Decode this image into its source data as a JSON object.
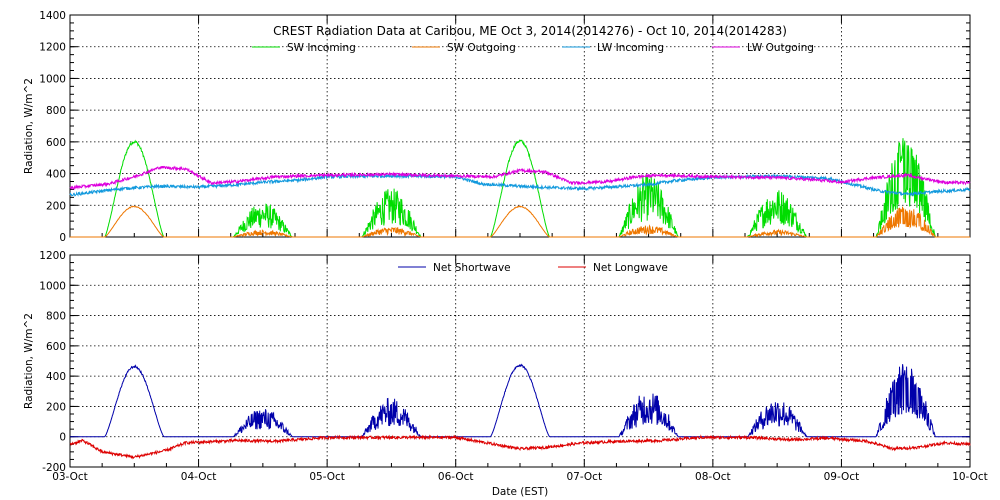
{
  "chart_data": [
    {
      "type": "line",
      "title": "CREST Radiation Data at Caribou, ME   Oct  3, 2014(2014276) - Oct 10, 2014(2014283)",
      "ylabel": "Radiation, W/m^2",
      "xlabel": "",
      "ylim": [
        0,
        1400
      ],
      "yticks": [
        "0",
        "200",
        "400",
        "600",
        "800",
        "1000",
        "1200",
        "1400"
      ],
      "xlim": [
        0,
        7
      ],
      "x_unit": "days after 03-Oct 00:00 EST",
      "grid": true,
      "legend": "top, two rows",
      "series": [
        {
          "name": "SW Incoming",
          "color": "#00dd00",
          "daily_peaks": [
            610,
            220,
            310,
            615,
            400,
            310,
            640
          ],
          "profile": [
            "smooth",
            "cloudy",
            "cloudy",
            "smooth",
            "cloudy",
            "cloudy",
            "spiky"
          ]
        },
        {
          "name": "SW Outgoing",
          "color": "#ee7700",
          "daily_peaks": [
            195,
            45,
            65,
            195,
            75,
            45,
            200
          ],
          "profile": [
            "smooth",
            "cloudy",
            "cloudy",
            "smooth",
            "cloudy",
            "cloudy",
            "spiky"
          ]
        },
        {
          "name": "LW Incoming",
          "color": "#1199dd",
          "points": [
            [
              0,
              265
            ],
            [
              0.4,
              305
            ],
            [
              0.7,
              320
            ],
            [
              1.0,
              315
            ],
            [
              1.3,
              330
            ],
            [
              1.5,
              345
            ],
            [
              1.8,
              360
            ],
            [
              2.0,
              380
            ],
            [
              2.5,
              385
            ],
            [
              3.0,
              380
            ],
            [
              3.2,
              335
            ],
            [
              3.5,
              320
            ],
            [
              3.8,
              310
            ],
            [
              4.0,
              305
            ],
            [
              4.3,
              320
            ],
            [
              4.5,
              330
            ],
            [
              4.7,
              355
            ],
            [
              5.0,
              375
            ],
            [
              5.5,
              385
            ],
            [
              5.9,
              370
            ],
            [
              6.1,
              330
            ],
            [
              6.3,
              290
            ],
            [
              6.5,
              270
            ],
            [
              6.8,
              290
            ],
            [
              7.0,
              300
            ]
          ]
        },
        {
          "name": "LW Outgoing",
          "color": "#dd00dd",
          "points": [
            [
              0,
              310
            ],
            [
              0.3,
              335
            ],
            [
              0.5,
              380
            ],
            [
              0.7,
              440
            ],
            [
              0.9,
              430
            ],
            [
              1.1,
              340
            ],
            [
              1.3,
              350
            ],
            [
              1.6,
              380
            ],
            [
              2.0,
              390
            ],
            [
              2.5,
              395
            ],
            [
              3.0,
              385
            ],
            [
              3.3,
              380
            ],
            [
              3.5,
              420
            ],
            [
              3.7,
              410
            ],
            [
              3.9,
              340
            ],
            [
              4.2,
              350
            ],
            [
              4.4,
              380
            ],
            [
              4.6,
              390
            ],
            [
              5.0,
              380
            ],
            [
              5.5,
              375
            ],
            [
              5.8,
              360
            ],
            [
              6.0,
              345
            ],
            [
              6.2,
              370
            ],
            [
              6.5,
              390
            ],
            [
              6.8,
              345
            ],
            [
              7.0,
              340
            ]
          ]
        }
      ]
    },
    {
      "type": "line",
      "title": "",
      "ylabel": "Radiation, W/m^2",
      "xlabel": "Date (EST)",
      "ylim": [
        -200,
        1200
      ],
      "yticks": [
        "-200",
        "0",
        "200",
        "400",
        "600",
        "800",
        "1000",
        "1200"
      ],
      "xlim": [
        0,
        7
      ],
      "x_unit": "days after 03-Oct 00:00 EST",
      "xticks": [
        "03-Oct",
        "04-Oct",
        "05-Oct",
        "06-Oct",
        "07-Oct",
        "08-Oct",
        "09-Oct",
        "10-Oct"
      ],
      "grid": true,
      "legend": "top",
      "series": [
        {
          "name": "Net Shortwave",
          "color": "#0000aa",
          "daily_peaks": [
            470,
            190,
            260,
            480,
            310,
            260,
            490
          ],
          "profile": [
            "smooth",
            "cloudy",
            "cloudy",
            "smooth",
            "cloudy",
            "cloudy",
            "spiky"
          ]
        },
        {
          "name": "Net Longwave",
          "color": "#dd0000",
          "points": [
            [
              0,
              -50
            ],
            [
              0.1,
              -25
            ],
            [
              0.25,
              -100
            ],
            [
              0.5,
              -135
            ],
            [
              0.75,
              -90
            ],
            [
              0.9,
              -40
            ],
            [
              1.3,
              -25
            ],
            [
              1.6,
              -30
            ],
            [
              2.0,
              -5
            ],
            [
              2.6,
              -5
            ],
            [
              3.0,
              -5
            ],
            [
              3.3,
              -50
            ],
            [
              3.5,
              -80
            ],
            [
              3.7,
              -70
            ],
            [
              4.0,
              -40
            ],
            [
              4.3,
              -30
            ],
            [
              4.6,
              -25
            ],
            [
              4.9,
              -5
            ],
            [
              5.3,
              -5
            ],
            [
              5.6,
              -20
            ],
            [
              5.9,
              -10
            ],
            [
              6.2,
              -30
            ],
            [
              6.4,
              -80
            ],
            [
              6.6,
              -70
            ],
            [
              6.8,
              -40
            ],
            [
              7.0,
              -50
            ]
          ]
        }
      ]
    }
  ]
}
